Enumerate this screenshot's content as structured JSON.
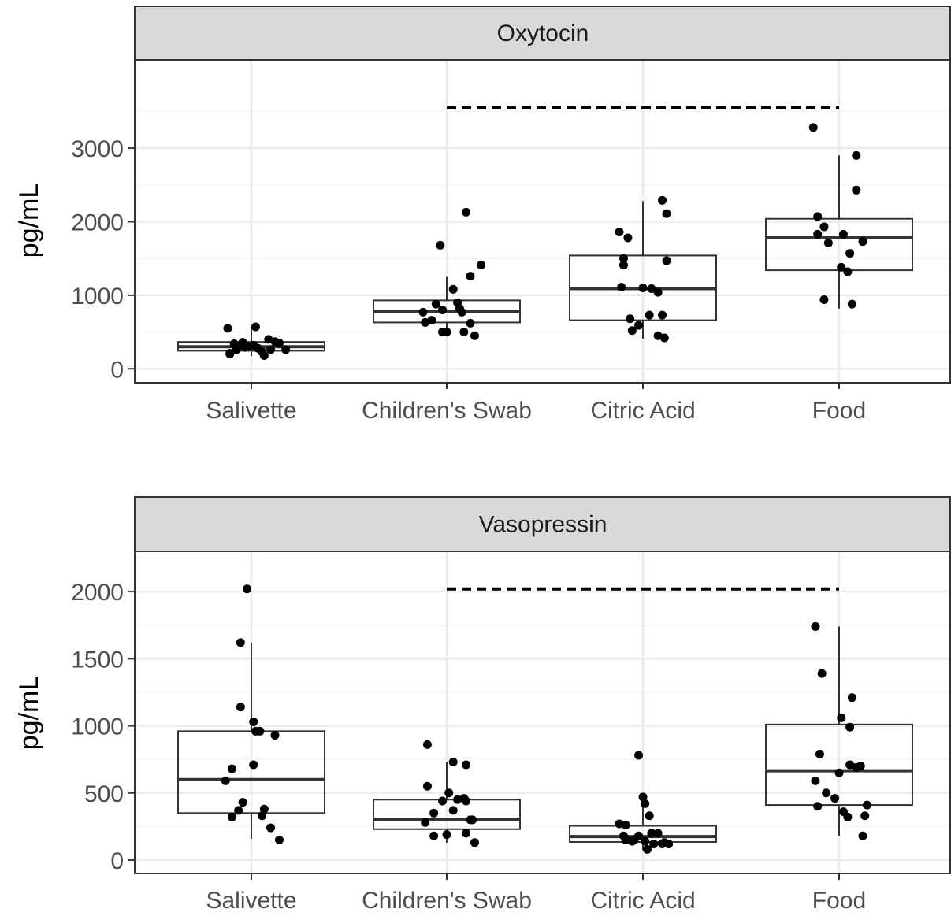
{
  "colors": {
    "strip_fill": "#d9d9d9",
    "frame": "#333333",
    "grid_major": "#ebebeb",
    "grid_minor": "#f5f5f5",
    "box_line": "#333333",
    "point": "#000000",
    "dashed_line": "#000000"
  },
  "chart_data": [
    {
      "type": "box",
      "title": "Oxytocin",
      "ylabel": "pg/mL",
      "xlabel": "",
      "categories": [
        "Salivette",
        "Children's Swab",
        "Citric Acid",
        "Food"
      ],
      "ylim": [
        -190,
        4200
      ],
      "yticks": [
        0,
        1000,
        2000,
        3000
      ],
      "ytick_labels": [
        "0",
        "1000",
        "2000",
        "3000"
      ],
      "grid": true,
      "legend": "none",
      "significance_bar": {
        "from": "Children's Swab",
        "to": "Food",
        "y": 3550,
        "style": "dashed"
      },
      "boxes": [
        {
          "category": "Salivette",
          "q1": 245,
          "median": 300,
          "q3": 365,
          "whisker_low": 170,
          "whisker_high": 570
        },
        {
          "category": "Children's Swab",
          "q1": 630,
          "median": 780,
          "q3": 930,
          "whisker_low": 440,
          "whisker_high": 1250
        },
        {
          "category": "Citric Acid",
          "q1": 660,
          "median": 1090,
          "q3": 1540,
          "whisker_low": 410,
          "whisker_high": 2280
        },
        {
          "category": "Food",
          "q1": 1340,
          "median": 1780,
          "q3": 2040,
          "whisker_low": 820,
          "whisker_high": 2900
        }
      ],
      "points": [
        {
          "category": "Salivette",
          "jitter": [
            -0.22,
            -0.16,
            -0.2,
            -0.14,
            -0.08,
            -0.02,
            0.02,
            0.06,
            0.1,
            0.16,
            0.22,
            0.26,
            0.32,
            -0.12,
            0.04,
            -0.2,
            0.12,
            0.18,
            -0.06
          ],
          "values": [
            550,
            340,
            200,
            260,
            360,
            300,
            320,
            280,
            230,
            400,
            370,
            350,
            260,
            300,
            570,
            210,
            180,
            260,
            290
          ]
        },
        {
          "category": "Children's Swab",
          "jitter": [
            0.18,
            -0.06,
            0.32,
            -0.22,
            0.06,
            0.22,
            -0.1,
            -0.2,
            -0.14,
            -0.04,
            0.1,
            0.14,
            -0.04,
            0.12,
            0.22,
            0.26,
            0.0,
            0.16
          ],
          "values": [
            2130,
            1680,
            1410,
            770,
            1080,
            1260,
            880,
            630,
            660,
            800,
            900,
            770,
            500,
            820,
            620,
            450,
            500,
            500
          ]
        },
        {
          "category": "Citric Acid",
          "jitter": [
            0.18,
            -0.22,
            -0.14,
            -0.18,
            0.22,
            -0.2,
            0.0,
            0.22,
            0.14,
            -0.18,
            -0.12,
            0.08,
            0.2,
            -0.1,
            0.06,
            -0.04,
            0.14,
            0.18
          ],
          "values": [
            2290,
            1860,
            1780,
            1500,
            2110,
            1110,
            1100,
            1470,
            1040,
            1410,
            680,
            1090,
            420,
            520,
            730,
            590,
            450,
            730
          ]
        },
        {
          "category": "Food",
          "jitter": [
            -0.24,
            0.16,
            -0.2,
            0.04,
            -0.14,
            0.22,
            -0.2,
            0.1,
            0.02,
            -0.1,
            0.08,
            -0.14,
            0.16,
            0.12
          ],
          "values": [
            3280,
            2430,
            2070,
            1830,
            1930,
            1730,
            1830,
            1570,
            1380,
            1710,
            1320,
            940,
            2900,
            880
          ],
          "_note": ""
        }
      ]
    },
    {
      "type": "box",
      "title": "Vasopressin",
      "ylabel": "pg/mL",
      "xlabel": "",
      "categories": [
        "Salivette",
        "Children's Swab",
        "Citric Acid",
        "Food"
      ],
      "ylim": [
        -100,
        2300
      ],
      "yticks": [
        0,
        500,
        1000,
        1500,
        2000
      ],
      "ytick_labels": [
        "0",
        "500",
        "1000",
        "1500",
        "2000"
      ],
      "grid": true,
      "legend": "none",
      "significance_bar": {
        "from": "Children's Swab",
        "to": "Food",
        "y": 2020,
        "style": "dashed"
      },
      "boxes": [
        {
          "category": "Salivette",
          "q1": 350,
          "median": 600,
          "q3": 960,
          "whisker_low": 160,
          "whisker_high": 1620
        },
        {
          "category": "Children's Swab",
          "q1": 230,
          "median": 305,
          "q3": 450,
          "whisker_low": 130,
          "whisker_high": 730
        },
        {
          "category": "Citric Acid",
          "q1": 135,
          "median": 175,
          "q3": 255,
          "whisker_low": 75,
          "whisker_high": 400
        },
        {
          "category": "Food",
          "q1": 410,
          "median": 665,
          "q3": 1010,
          "whisker_low": 180,
          "whisker_high": 1740
        }
      ],
      "points": [
        {
          "category": "Salivette",
          "jitter": [
            -0.04,
            -0.1,
            -0.1,
            0.02,
            0.22,
            0.04,
            -0.18,
            -0.24,
            0.02,
            -0.08,
            0.08,
            0.12,
            0.26,
            -0.12,
            -0.18,
            0.1,
            0.18
          ],
          "values": [
            2020,
            1620,
            1140,
            1030,
            930,
            960,
            680,
            590,
            710,
            430,
            960,
            380,
            150,
            370,
            320,
            330,
            240
          ],
          "_note": ""
        },
        {
          "category": "Children's Swab",
          "jitter": [
            -0.18,
            0.06,
            -0.18,
            0.18,
            0.02,
            0.1,
            -0.12,
            -0.04,
            0.16,
            0.24,
            0.22,
            -0.2,
            -0.12,
            0.18,
            0.26,
            0.0,
            0.18,
            0.06
          ],
          "values": [
            860,
            730,
            550,
            710,
            500,
            450,
            350,
            440,
            460,
            300,
            300,
            280,
            180,
            200,
            130,
            190,
            440,
            370
          ]
        },
        {
          "category": "Citric Acid",
          "jitter": [
            -0.04,
            0.0,
            -0.16,
            0.02,
            0.06,
            0.08,
            -0.22,
            -0.18,
            -0.16,
            -0.08,
            -0.04,
            0.02,
            0.1,
            0.14,
            0.18,
            0.2,
            0.24,
            -0.1,
            0.04
          ],
          "values": [
            780,
            470,
            260,
            420,
            330,
            200,
            270,
            180,
            150,
            150,
            180,
            140,
            120,
            200,
            120,
            130,
            120,
            140,
            80
          ]
        },
        {
          "category": "Food",
          "jitter": [
            -0.22,
            -0.16,
            0.12,
            0.02,
            0.1,
            -0.18,
            -0.22,
            -0.12,
            0.0,
            0.2,
            0.16,
            0.26,
            0.04,
            -0.2,
            -0.04,
            0.1,
            0.08,
            0.24,
            0.22
          ],
          "values": [
            1740,
            1390,
            1210,
            1060,
            990,
            790,
            590,
            500,
            650,
            700,
            690,
            410,
            360,
            400,
            460,
            710,
            320,
            330,
            180
          ]
        }
      ]
    }
  ]
}
